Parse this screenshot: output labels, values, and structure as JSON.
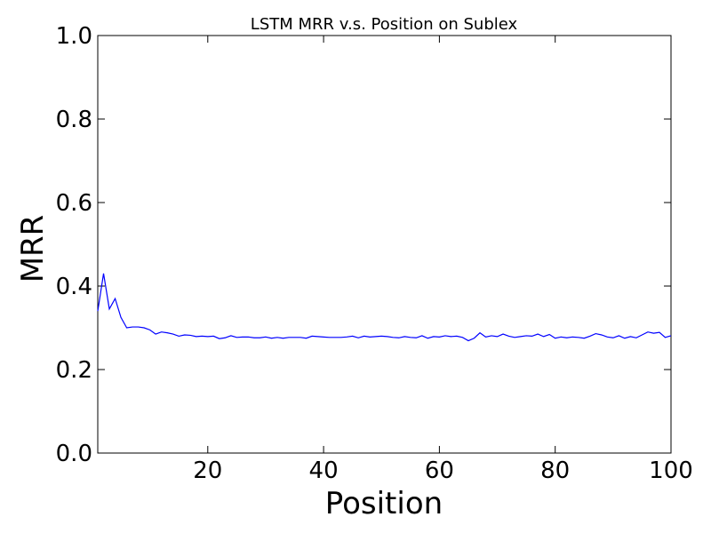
{
  "chart_data": {
    "type": "line",
    "title": "LSTM MRR v.s. Position on Sublex",
    "xlabel": "Position",
    "ylabel": "MRR",
    "xlim": [
      1,
      100
    ],
    "ylim": [
      0.0,
      1.0
    ],
    "xticks": [
      20,
      40,
      60,
      80,
      100
    ],
    "yticks": [
      0.0,
      0.2,
      0.4,
      0.6,
      0.8,
      1.0
    ],
    "xtick_labels": [
      "20",
      "40",
      "60",
      "80",
      "100"
    ],
    "ytick_labels": [
      "0.0",
      "0.2",
      "0.4",
      "0.6",
      "0.8",
      "1.0"
    ],
    "grid": false,
    "series": [
      {
        "color": "#0000ff",
        "x": [
          1,
          2,
          3,
          4,
          5,
          6,
          7,
          8,
          9,
          10,
          11,
          12,
          13,
          14,
          15,
          16,
          17,
          18,
          19,
          20,
          21,
          22,
          23,
          24,
          25,
          26,
          27,
          28,
          29,
          30,
          31,
          32,
          33,
          34,
          35,
          36,
          37,
          38,
          39,
          40,
          41,
          42,
          43,
          44,
          45,
          46,
          47,
          48,
          49,
          50,
          51,
          52,
          53,
          54,
          55,
          56,
          57,
          58,
          59,
          60,
          61,
          62,
          63,
          64,
          65,
          66,
          67,
          68,
          69,
          70,
          71,
          72,
          73,
          74,
          75,
          76,
          77,
          78,
          79,
          80,
          81,
          82,
          83,
          84,
          85,
          86,
          87,
          88,
          89,
          90,
          91,
          92,
          93,
          94,
          95,
          96,
          97,
          98,
          99,
          100
        ],
        "values": [
          0.34,
          0.43,
          0.345,
          0.37,
          0.325,
          0.3,
          0.302,
          0.302,
          0.3,
          0.295,
          0.285,
          0.29,
          0.288,
          0.285,
          0.28,
          0.283,
          0.282,
          0.279,
          0.28,
          0.279,
          0.28,
          0.274,
          0.276,
          0.281,
          0.277,
          0.278,
          0.278,
          0.276,
          0.276,
          0.278,
          0.275,
          0.277,
          0.275,
          0.277,
          0.277,
          0.277,
          0.275,
          0.28,
          0.279,
          0.278,
          0.277,
          0.277,
          0.277,
          0.278,
          0.28,
          0.276,
          0.28,
          0.278,
          0.279,
          0.28,
          0.279,
          0.277,
          0.276,
          0.279,
          0.277,
          0.276,
          0.281,
          0.275,
          0.279,
          0.278,
          0.281,
          0.279,
          0.28,
          0.277,
          0.269,
          0.275,
          0.288,
          0.278,
          0.281,
          0.279,
          0.285,
          0.28,
          0.277,
          0.279,
          0.281,
          0.28,
          0.285,
          0.279,
          0.284,
          0.275,
          0.278,
          0.276,
          0.278,
          0.277,
          0.275,
          0.28,
          0.286,
          0.283,
          0.278,
          0.276,
          0.281,
          0.275,
          0.279,
          0.276,
          0.283,
          0.29,
          0.287,
          0.289,
          0.277,
          0.281
        ]
      }
    ]
  }
}
